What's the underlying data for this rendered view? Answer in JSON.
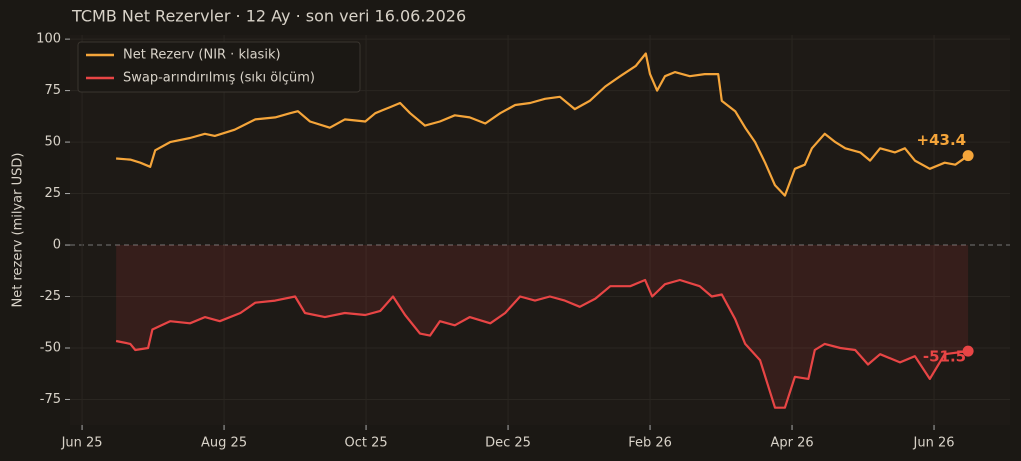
{
  "chart_data": {
    "type": "line",
    "title": "TCMB Net Rezervler · 12 Ay · son veri 16.06.2026",
    "y_label": "Net rezerv (milyar USD)",
    "grid": true,
    "zero_line": true,
    "legend": "upper left",
    "xlim": [
      -0.17,
      13.07
    ],
    "xticks": [
      {
        "value": 0,
        "label": "Jun 25"
      },
      {
        "value": 2,
        "label": "Aug 25"
      },
      {
        "value": 4,
        "label": "Oct 25"
      },
      {
        "value": 6,
        "label": "Dec 25"
      },
      {
        "value": 8,
        "label": "Feb 26"
      },
      {
        "value": 10,
        "label": "Apr 26"
      },
      {
        "value": 12,
        "label": "Jun 26"
      }
    ],
    "ylim": [
      -87.4,
      102
    ],
    "yticks": [
      -75,
      -50,
      -25,
      0,
      25,
      50,
      75,
      100
    ],
    "series": [
      {
        "name": "Net Rezerv (NIR · klasik)",
        "color": "#f5a53a",
        "fill": false,
        "end_label": "+43.4",
        "x": [
          0.48,
          0.68,
          0.82,
          0.96,
          1.03,
          1.24,
          1.52,
          1.73,
          1.87,
          2.15,
          2.44,
          2.72,
          2.93,
          3.04,
          3.21,
          3.49,
          3.7,
          3.99,
          4.13,
          4.34,
          4.48,
          4.62,
          4.83,
          5.04,
          5.25,
          5.46,
          5.68,
          5.89,
          6.1,
          6.31,
          6.52,
          6.73,
          6.94,
          7.15,
          7.37,
          7.58,
          7.8,
          7.94,
          8.0,
          8.1,
          8.21,
          8.35,
          8.56,
          8.77,
          8.96,
          9.01,
          9.2,
          9.34,
          9.48,
          9.62,
          9.76,
          9.9,
          10.04,
          10.18,
          10.28,
          10.46,
          10.61,
          10.75,
          10.96,
          11.1,
          11.24,
          11.45,
          11.59,
          11.73,
          11.94,
          12.15,
          12.3,
          12.48
        ],
        "values": [
          42,
          41.5,
          40,
          38,
          46,
          50,
          52,
          54,
          53,
          56,
          61,
          62,
          64,
          65,
          60,
          57,
          61,
          60,
          64,
          67,
          69,
          64,
          58,
          60,
          63,
          62,
          59,
          64,
          68,
          69,
          71,
          72,
          66,
          70,
          77,
          82,
          87,
          93,
          83,
          75,
          82,
          84,
          82,
          83,
          83,
          70,
          65,
          57,
          50,
          40,
          29,
          24,
          37,
          39,
          47,
          54,
          50,
          47,
          45,
          41,
          47,
          45,
          47,
          41,
          37,
          40,
          39,
          43.4
        ]
      },
      {
        "name": "Swap-arındırılmış (sıkı ölçüm)",
        "color": "#e84545",
        "fill": true,
        "end_label": "-51.5",
        "x": [
          0.48,
          0.68,
          0.75,
          0.93,
          0.99,
          1.24,
          1.52,
          1.73,
          1.94,
          2.23,
          2.44,
          2.72,
          3.0,
          3.14,
          3.42,
          3.7,
          3.99,
          4.2,
          4.38,
          4.55,
          4.76,
          4.9,
          5.04,
          5.25,
          5.46,
          5.75,
          5.96,
          6.17,
          6.38,
          6.59,
          6.8,
          7.01,
          7.23,
          7.44,
          7.72,
          7.93,
          8.03,
          8.21,
          8.42,
          8.7,
          8.87,
          9.01,
          9.2,
          9.34,
          9.55,
          9.76,
          9.9,
          10.04,
          10.23,
          10.32,
          10.46,
          10.68,
          10.89,
          11.07,
          11.24,
          11.52,
          11.73,
          11.94,
          12.15,
          12.48
        ],
        "values": [
          -46.6,
          -48,
          -51,
          -50,
          -41,
          -37,
          -38,
          -35,
          -37,
          -33,
          -28,
          -27,
          -25,
          -33,
          -35,
          -33,
          -34,
          -32,
          -25,
          -34,
          -43,
          -44,
          -37,
          -39,
          -35,
          -38,
          -33,
          -25,
          -27,
          -25,
          -27,
          -30,
          -26,
          -20,
          -20,
          -17,
          -25,
          -19,
          -17,
          -20,
          -25,
          -24,
          -36,
          -48,
          -56,
          -79,
          -79,
          -64,
          -65,
          -51,
          -48,
          -50,
          -51,
          -58,
          -53,
          -57,
          -54,
          -65,
          -53,
          -51.5
        ]
      }
    ]
  }
}
